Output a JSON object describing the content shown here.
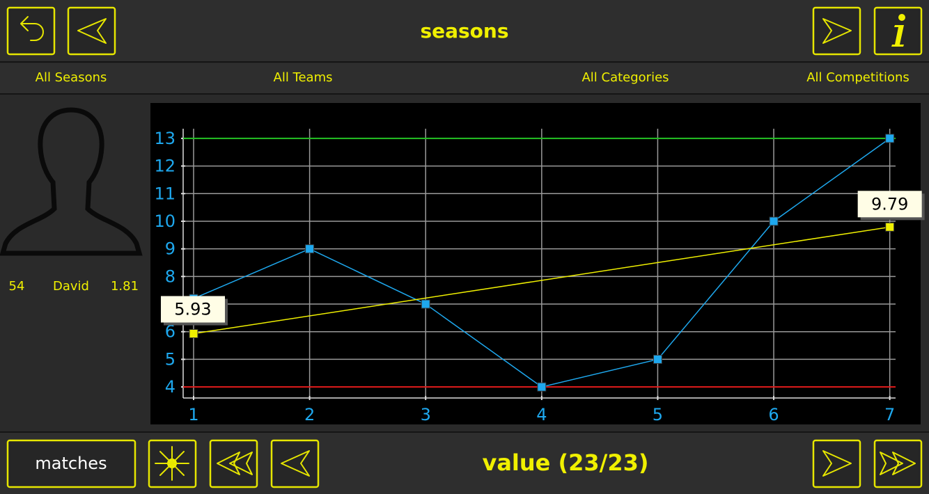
{
  "header": {
    "title": "seasons"
  },
  "filters": [
    "All Seasons",
    "All Teams",
    "All Categories",
    "All Competitions"
  ],
  "player": {
    "number": 54,
    "name": "David",
    "height": 1.81
  },
  "footer": {
    "button": "matches",
    "label": "value (23/23)"
  },
  "chart_data": {
    "type": "line",
    "x": [
      1,
      2,
      3,
      4,
      5,
      6,
      7
    ],
    "xlim": [
      0.91,
      7.05
    ],
    "xticks": [
      1,
      2,
      3,
      4,
      5,
      6,
      7
    ],
    "ylim": [
      3.6,
      13.35
    ],
    "yticks": [
      4,
      5,
      6,
      7,
      8,
      9,
      10,
      11,
      12,
      13
    ],
    "grid": true,
    "series": [
      {
        "color": "#1ea8ee",
        "values": [
          7.2,
          9,
          7,
          4,
          5,
          10,
          13
        ]
      }
    ],
    "trend": {
      "color": "#f0f000",
      "x": [
        1,
        7
      ],
      "values": [
        5.93,
        9.79
      ]
    },
    "hlines": [
      {
        "value": 13,
        "color": "#22c022"
      },
      {
        "value": 4,
        "color": "#e01818"
      }
    ]
  }
}
